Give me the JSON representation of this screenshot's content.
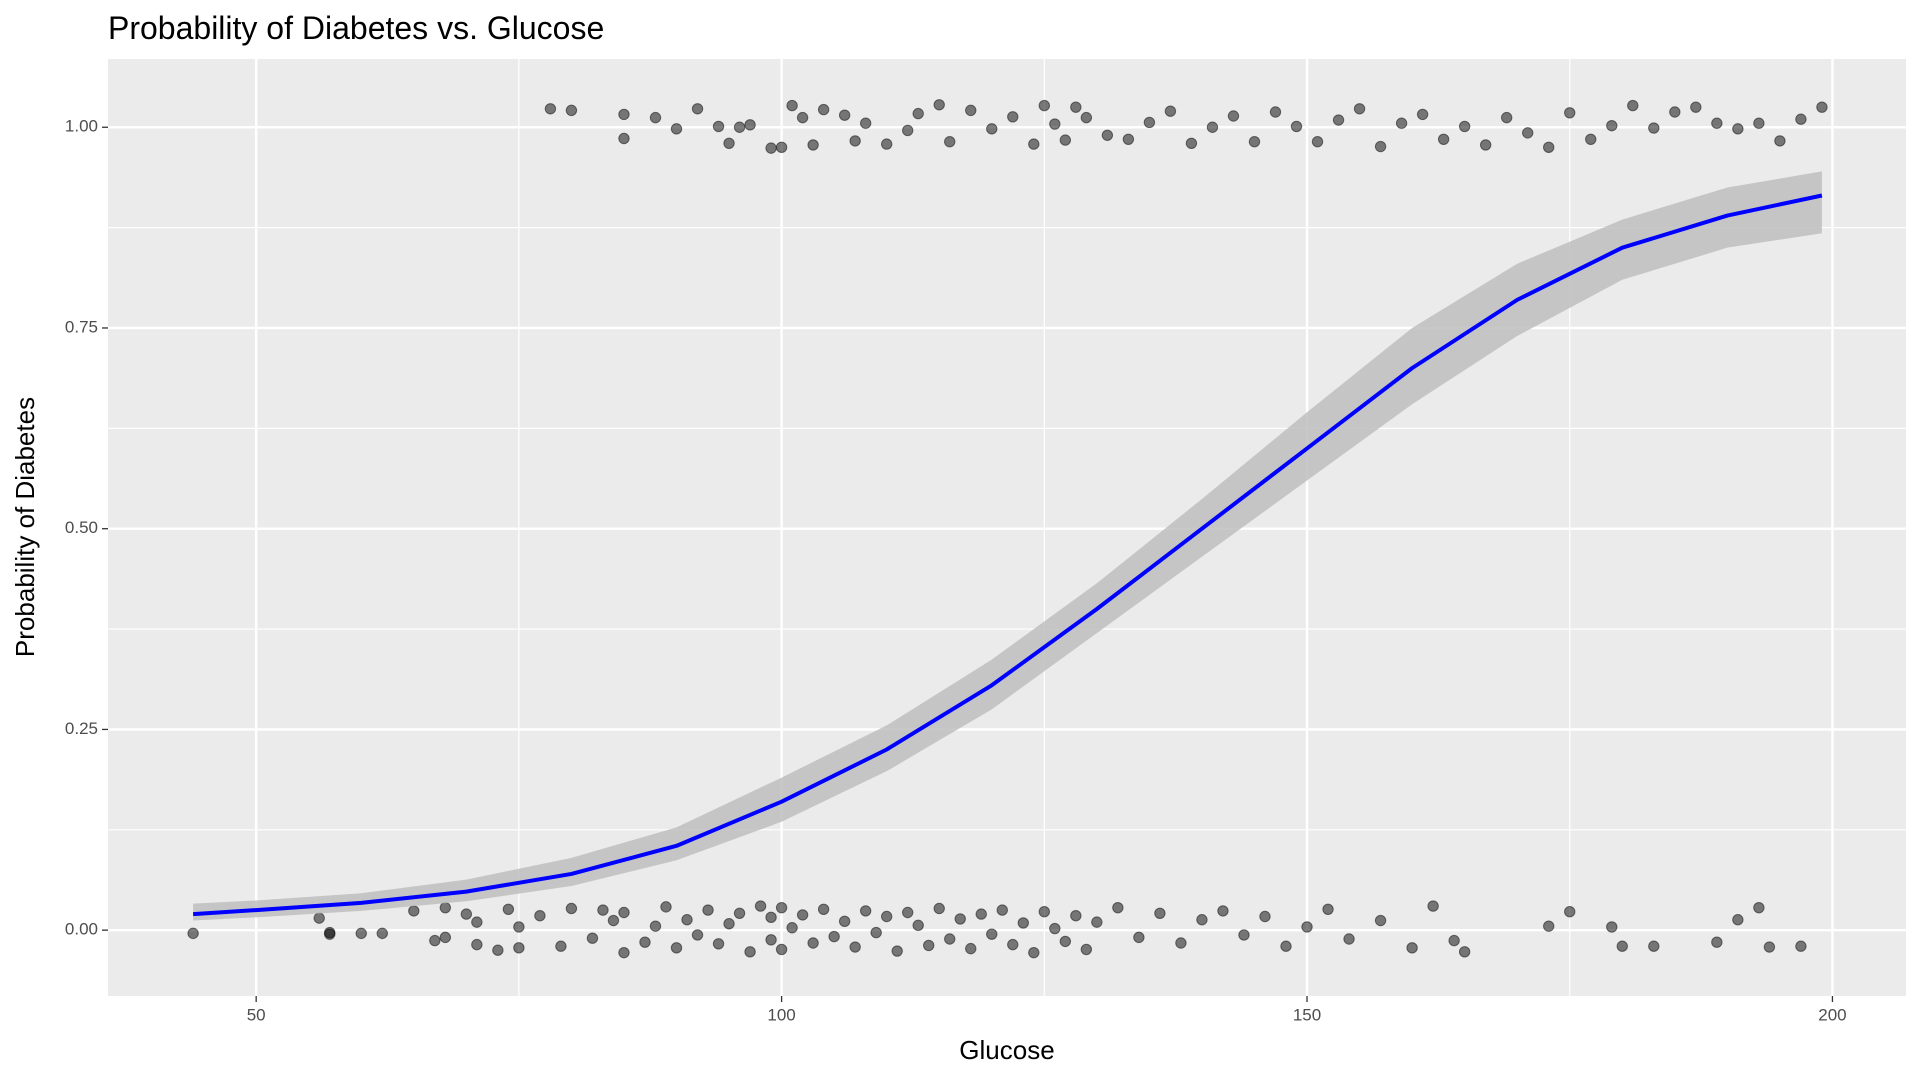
{
  "chart_data": {
    "type": "scatter",
    "title": "Probability of Diabetes vs. Glucose",
    "x_label": "Glucose",
    "y_label": "Probability of Diabetes",
    "xlim": [
      35.9,
      207
    ],
    "ylim": [
      -0.082,
      1.085
    ],
    "xticks": [
      50,
      100,
      150,
      200
    ],
    "yticks": [
      {
        "value": 0,
        "label": "0.00"
      },
      {
        "value": 0.25,
        "label": "0.25"
      },
      {
        "value": 0.5,
        "label": "0.50"
      },
      {
        "value": 0.75,
        "label": "0.75"
      },
      {
        "value": 1,
        "label": "1.00"
      }
    ],
    "minor_xticks": [
      75,
      125,
      175
    ],
    "minor_yticks": [
      0.125,
      0.375,
      0.625,
      0.875
    ],
    "grid": true,
    "points": {
      "color": "#000000",
      "opacity": 0.5,
      "x": [
        44,
        56,
        57,
        57,
        60,
        62,
        65,
        67,
        68,
        68,
        70,
        71,
        71,
        73,
        74,
        75,
        75,
        77,
        79,
        80,
        82,
        83,
        84,
        85,
        85,
        87,
        88,
        89,
        90,
        91,
        92,
        93,
        94,
        95,
        96,
        97,
        98,
        99,
        99,
        100,
        100,
        101,
        102,
        103,
        104,
        105,
        106,
        107,
        108,
        109,
        110,
        111,
        112,
        113,
        114,
        115,
        116,
        117,
        118,
        119,
        120,
        121,
        122,
        123,
        124,
        125,
        126,
        127,
        128,
        129,
        130,
        132,
        134,
        136,
        138,
        140,
        142,
        144,
        146,
        148,
        150,
        152,
        154,
        157,
        160,
        162,
        164,
        165,
        173,
        175,
        179,
        180,
        183,
        189,
        191,
        193,
        194,
        197,
        78,
        80,
        85,
        85,
        88,
        90,
        92,
        94,
        95,
        96,
        97,
        99,
        100,
        101,
        102,
        103,
        104,
        106,
        107,
        108,
        110,
        112,
        113,
        115,
        116,
        118,
        120,
        122,
        124,
        125,
        126,
        127,
        128,
        129,
        131,
        133,
        135,
        137,
        139,
        141,
        143,
        145,
        147,
        149,
        151,
        153,
        155,
        157,
        159,
        161,
        163,
        165,
        167,
        169,
        171,
        173,
        175,
        177,
        179,
        181,
        183,
        185,
        187,
        189,
        191,
        193,
        195,
        197,
        199
      ],
      "y": [
        -0.004,
        0.015,
        -0.003,
        -0.005,
        -0.004,
        -0.004,
        0.024,
        -0.013,
        0.028,
        -0.009,
        0.02,
        -0.018,
        0.01,
        -0.025,
        0.026,
        0.004,
        -0.022,
        0.018,
        -0.02,
        0.027,
        -0.01,
        0.025,
        0.012,
        -0.028,
        0.022,
        -0.015,
        0.005,
        0.029,
        -0.022,
        0.013,
        -0.006,
        0.025,
        -0.017,
        0.008,
        0.021,
        -0.027,
        0.03,
        -0.012,
        0.016,
        0.028,
        -0.024,
        0.003,
        0.019,
        -0.016,
        0.026,
        -0.008,
        0.011,
        -0.021,
        0.024,
        -0.003,
        0.017,
        -0.026,
        0.022,
        0.006,
        -0.019,
        0.027,
        -0.011,
        0.014,
        -0.023,
        0.02,
        -0.005,
        0.025,
        -0.018,
        0.009,
        -0.028,
        0.023,
        0.002,
        -0.014,
        0.018,
        -0.024,
        0.01,
        0.028,
        -0.009,
        0.021,
        -0.016,
        0.013,
        0.024,
        -0.006,
        0.017,
        -0.02,
        0.004,
        0.026,
        -0.011,
        0.012,
        -0.022,
        0.03,
        -0.013,
        -0.027,
        0.005,
        0.023,
        0.004,
        -0.02,
        -0.02,
        -0.015,
        0.013,
        0.028,
        -0.021,
        -0.02,
        1.023,
        1.021,
        1.016,
        0.986,
        1.012,
        0.998,
        1.023,
        1.001,
        0.98,
        1.0,
        1.003,
        0.974,
        0.975,
        1.027,
        1.012,
        0.978,
        1.022,
        1.015,
        0.983,
        1.005,
        0.979,
        0.996,
        1.017,
        1.028,
        0.982,
        1.021,
        0.998,
        1.013,
        0.979,
        1.027,
        1.004,
        0.984,
        1.025,
        1.012,
        0.99,
        0.985,
        1.006,
        1.02,
        0.98,
        1.0,
        1.014,
        0.982,
        1.019,
        1.001,
        0.982,
        1.009,
        1.023,
        0.976,
        1.005,
        1.016,
        0.985,
        1.001,
        0.978,
        1.012,
        0.993,
        0.975,
        1.018,
        0.985,
        1.002,
        1.027,
        0.999,
        1.019,
        1.025,
        1.005,
        0.998,
        1.005,
        0.983,
        1.01,
        1.025
      ]
    },
    "fit": {
      "color": "#0000ff",
      "band_color": "#bebebe",
      "x": [
        44,
        50,
        60,
        70,
        80,
        90,
        100,
        110,
        120,
        130,
        140,
        150,
        160,
        170,
        180,
        190,
        199
      ],
      "values": [
        0.02,
        0.025,
        0.034,
        0.048,
        0.07,
        0.105,
        0.16,
        0.225,
        0.305,
        0.4,
        0.5,
        0.6,
        0.7,
        0.785,
        0.85,
        0.89,
        0.915
      ],
      "lower": [
        0.012,
        0.016,
        0.024,
        0.036,
        0.055,
        0.087,
        0.135,
        0.198,
        0.275,
        0.37,
        0.465,
        0.56,
        0.655,
        0.74,
        0.81,
        0.85,
        0.868
      ],
      "upper": [
        0.033,
        0.037,
        0.046,
        0.063,
        0.09,
        0.128,
        0.19,
        0.255,
        0.337,
        0.432,
        0.537,
        0.645,
        0.75,
        0.83,
        0.885,
        0.925,
        0.945
      ]
    }
  }
}
